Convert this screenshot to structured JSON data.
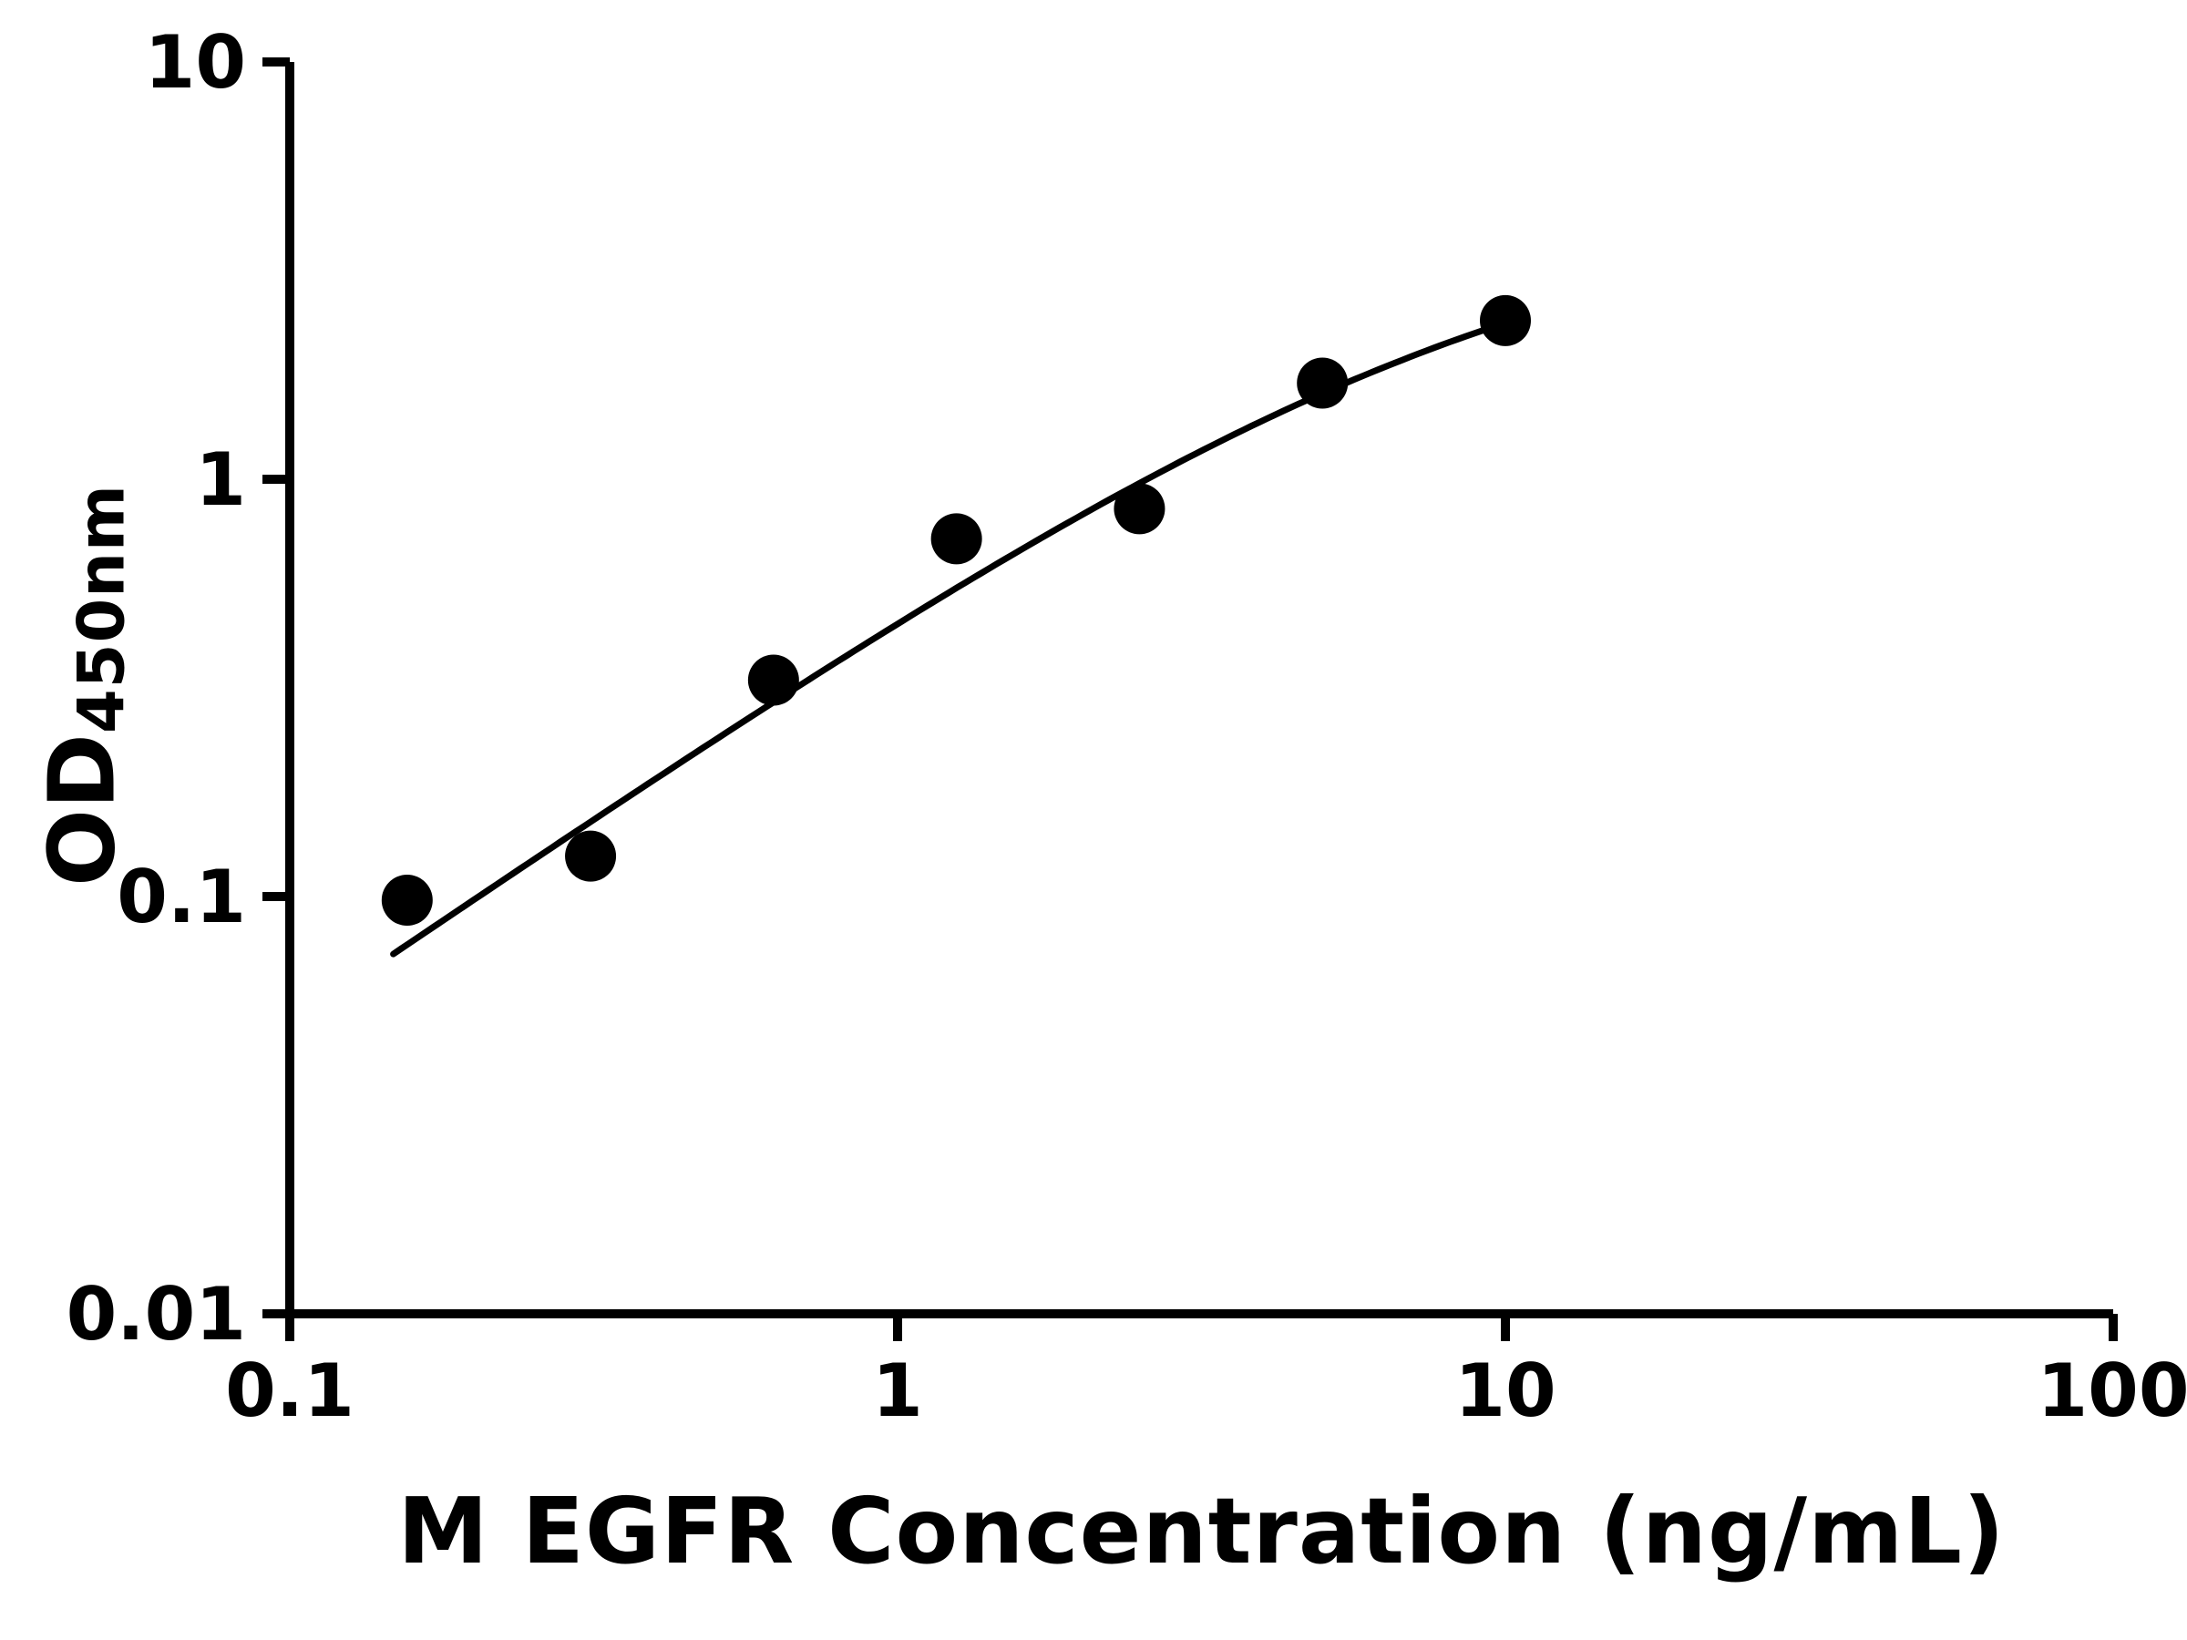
{
  "chart_data": {
    "type": "scatter",
    "title": "",
    "xlabel": "M EGFR Concentration (ng/mL)",
    "ylabel_main": "OD",
    "ylabel_sub": "450nm",
    "x_scale": "log",
    "y_scale": "log",
    "xlim": [
      0.1,
      100
    ],
    "ylim": [
      0.01,
      10
    ],
    "x_ticks": [
      0.1,
      1,
      10,
      100
    ],
    "y_ticks": [
      10,
      1,
      0.1,
      0.01
    ],
    "x_tick_labels": [
      "0.1",
      "1",
      "10",
      "100"
    ],
    "y_tick_labels": [
      "10",
      "1",
      "0.1",
      "0.01"
    ],
    "grid": false,
    "legend": false,
    "marker_color": "#000000",
    "line_color": "#000000",
    "axis_color": "#000000",
    "points": [
      {
        "x": 0.156,
        "y": 0.098
      },
      {
        "x": 0.3125,
        "y": 0.125
      },
      {
        "x": 0.625,
        "y": 0.33
      },
      {
        "x": 1.25,
        "y": 0.72
      },
      {
        "x": 2.5,
        "y": 0.85
      },
      {
        "x": 5,
        "y": 1.7
      },
      {
        "x": 10,
        "y": 2.4
      }
    ],
    "fit_curve": {
      "type": "4PL",
      "A": 0,
      "B": 1,
      "C": 9,
      "D": 4.5,
      "x_start": 0.148,
      "x_end": 10
    }
  }
}
